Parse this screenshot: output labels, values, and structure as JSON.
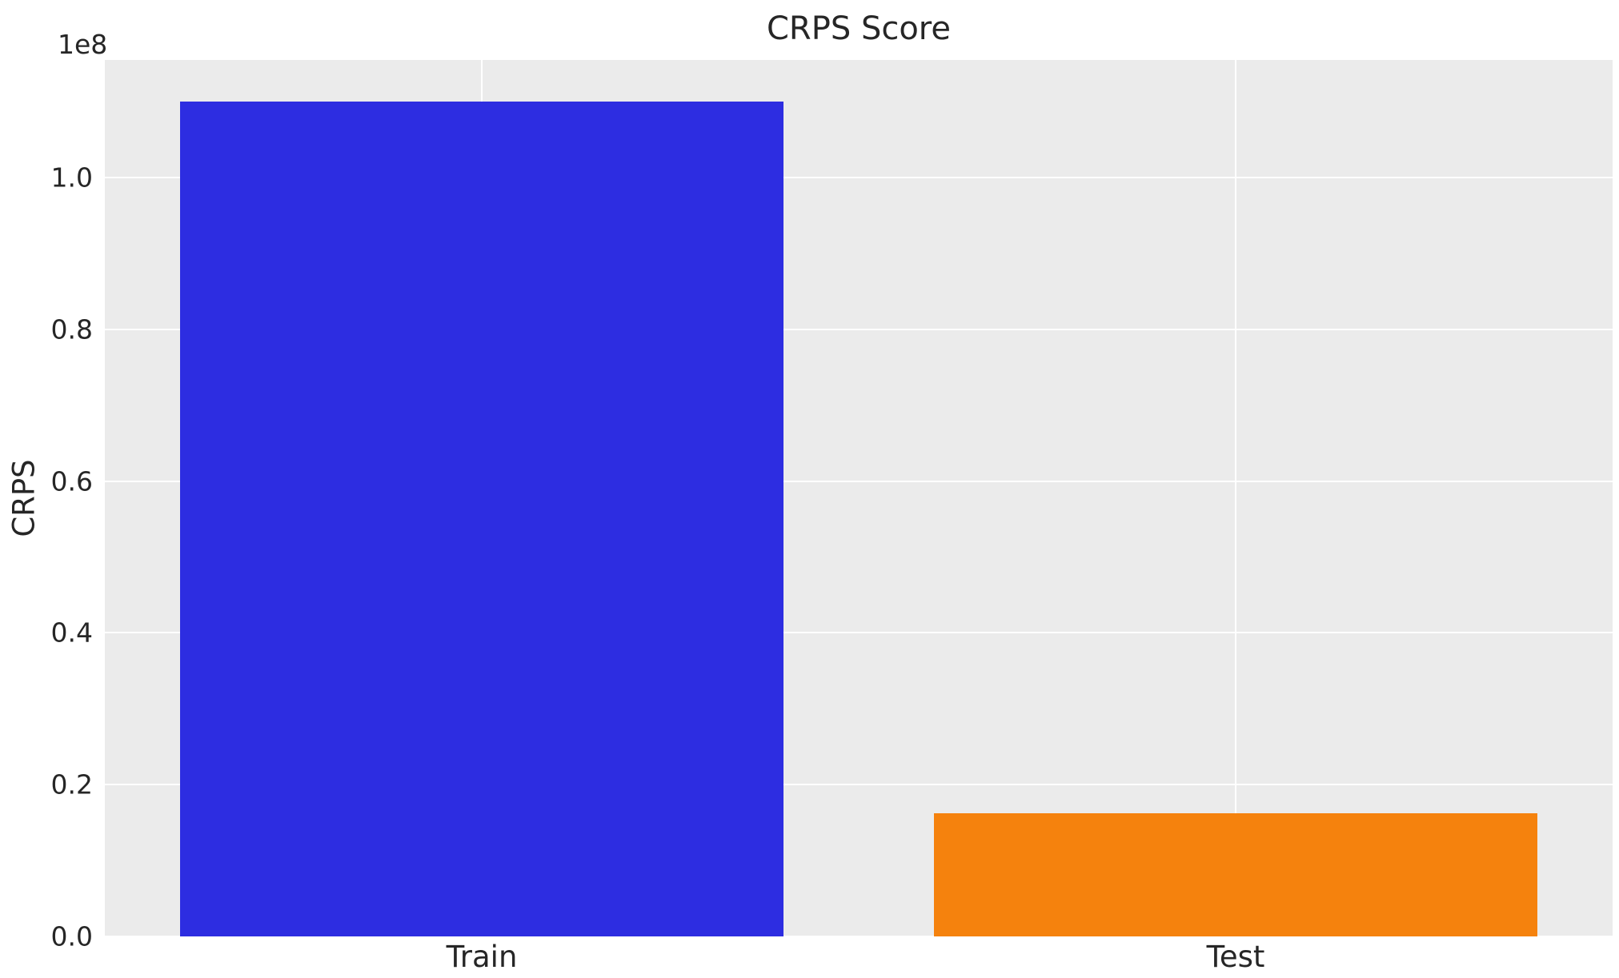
{
  "chart_data": {
    "type": "bar",
    "title": "CRPS Score",
    "xlabel": "",
    "ylabel": "CRPS",
    "offset_text": "1e8",
    "categories": [
      "Train",
      "Test"
    ],
    "values": [
      110000000,
      16200000
    ],
    "bar_colors": [
      "#2d2de1",
      "#f5820d"
    ],
    "ylim": [
      0,
      115500000
    ],
    "yticks": [
      0,
      20000000,
      40000000,
      60000000,
      80000000,
      100000000
    ],
    "ytick_labels": [
      "0.0",
      "0.2",
      "0.4",
      "0.6",
      "0.8",
      "1.0"
    ],
    "grid": true,
    "legend": "none",
    "plot_background": "#ebebeb",
    "grid_color": "#ffffff",
    "text_color": "#262626"
  }
}
